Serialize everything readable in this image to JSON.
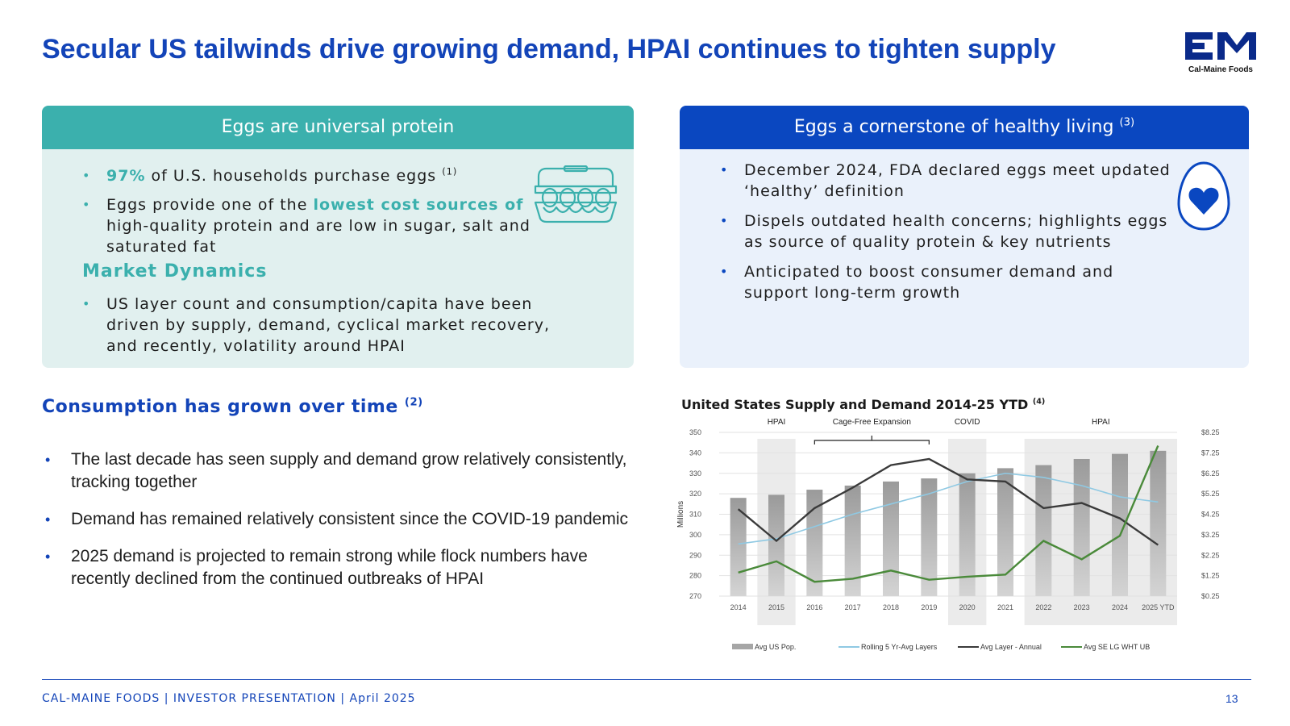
{
  "header": {
    "title": "Secular US tailwinds drive growing demand, HPAI continues to tighten supply",
    "logo_text": "Cal-Maine Foods"
  },
  "left_panel": {
    "heading": "Eggs are universal protein",
    "b1_highlight": "97%",
    "b1_text": " of U.S. households purchase eggs ",
    "b1_sup": "(1)",
    "b2_pre": "Eggs provide one of the ",
    "b2_highlight": "lowest cost sources of",
    "b2_post": " high-quality protein and are low in sugar, salt and saturated fat",
    "market_heading": "Market Dynamics",
    "b3_text": "US layer count and consumption/capita have been driven by supply, demand, cyclical market recovery, and recently, volatility around HPAI"
  },
  "right_panel": {
    "heading": "Eggs a cornerstone of healthy living ",
    "heading_sup": "(3)",
    "bullets": [
      "December 2024, FDA declared eggs meet updated ‘healthy’ definition",
      "Dispels outdated health concerns; highlights eggs as source of quality protein & key nutrients",
      "Anticipated to boost consumer demand and support long-term growth"
    ]
  },
  "consumption": {
    "heading": "Consumption has grown over time ",
    "heading_sup": "(2)",
    "bullets": [
      "The last decade has seen supply and demand grow relatively consistently, tracking together",
      "Demand has remained relatively consistent since the COVID-19 pandemic",
      "2025 demand is projected to remain strong while flock numbers have recently declined from the continued outbreaks of HPAI"
    ]
  },
  "chart_data": {
    "type": "bar",
    "title": "United States Supply and Demand 2014-25 YTD ",
    "title_sup": "(4)",
    "ylabel": "Millions",
    "ylim": [
      270,
      350
    ],
    "yticks": [
      270,
      280,
      290,
      300,
      310,
      320,
      330,
      340,
      350
    ],
    "y2lim": [
      0.25,
      8.25
    ],
    "y2ticks": [
      "$0.25",
      "$1.25",
      "$2.25",
      "$3.25",
      "$4.25",
      "$5.25",
      "$6.25",
      "$7.25",
      "$8.25"
    ],
    "categories": [
      "2014",
      "2015",
      "2016",
      "2017",
      "2018",
      "2019",
      "2020",
      "2021",
      "2022",
      "2023",
      "2024",
      "2025 YTD"
    ],
    "series": [
      {
        "name": "Avg US Pop.",
        "kind": "bar",
        "axis": "left",
        "color": "#a6a6a6",
        "values": [
          318,
          319.5,
          322,
          324,
          326,
          327.5,
          330,
          332.5,
          334,
          337,
          339.5,
          341
        ]
      },
      {
        "name": "Rolling 5 Yr-Avg Layers",
        "kind": "line",
        "axis": "left",
        "color": "#8fc9e3",
        "values": [
          295.5,
          298,
          304,
          310,
          315,
          320,
          326,
          330,
          328,
          324,
          318.5,
          316
        ]
      },
      {
        "name": "Avg Layer - Annual",
        "kind": "line",
        "axis": "left",
        "color": "#3a3a3a",
        "values": [
          312.5,
          297,
          313,
          323,
          334,
          337,
          327,
          326,
          313,
          315.5,
          308,
          295
        ]
      },
      {
        "name": "Avg SE LG WHT UB",
        "kind": "line",
        "axis": "right",
        "color": "#4a8a3a",
        "values": [
          1.4,
          1.95,
          0.95,
          1.1,
          1.5,
          1.05,
          1.2,
          1.3,
          2.95,
          2.05,
          3.2,
          7.6
        ]
      }
    ],
    "annotations": [
      {
        "label": "HPAI",
        "from": 1,
        "to": 1
      },
      {
        "label": "Cage-Free Expansion",
        "from": 2,
        "to": 5,
        "bracket": true
      },
      {
        "label": "COVID",
        "from": 6,
        "to": 6
      },
      {
        "label": "HPAI",
        "from": 8,
        "to": 11
      }
    ],
    "shaded": [
      [
        1,
        1
      ],
      [
        6,
        6
      ],
      [
        8,
        11
      ]
    ],
    "legend": "bottom"
  },
  "footer": {
    "text": "CAL-MAINE FOODS | INVESTOR PRESENTATION | April 2025",
    "page": "13"
  },
  "colors": {
    "brand_blue": "#1344b8",
    "teal": "#3bb0ad",
    "panel_blue": "#0a47c0"
  }
}
